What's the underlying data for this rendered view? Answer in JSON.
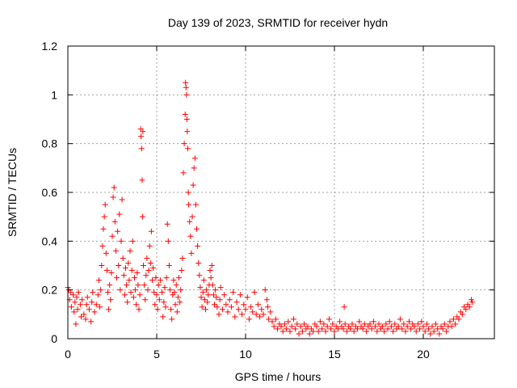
{
  "chart_data": {
    "type": "scatter",
    "title": "Day 139 of 2023, SRMTID for receiver hydn",
    "xlabel": "GPS time / hours",
    "ylabel": "SRMTID / TECUs",
    "xlim": [
      0,
      24
    ],
    "ylim": [
      0,
      1.2
    ],
    "xticks": [
      0,
      5,
      10,
      15,
      20
    ],
    "xtick_labels": [
      "0",
      "5",
      "10",
      "15",
      "20"
    ],
    "yticks": [
      0,
      0.2,
      0.4,
      0.6,
      0.8,
      1.0,
      1.2
    ],
    "ytick_labels": [
      "0",
      "0.2",
      "0.4",
      "0.6",
      "0.8",
      "1",
      "1.2"
    ],
    "grid": true,
    "marker": "+",
    "color": "#ff0000",
    "series": [
      {
        "name": "SRMTID",
        "points": [
          [
            0.0,
            0.21
          ],
          [
            0.05,
            0.2
          ],
          [
            0.1,
            0.16
          ],
          [
            0.15,
            0.19
          ],
          [
            0.2,
            0.13
          ],
          [
            0.3,
            0.18
          ],
          [
            0.35,
            0.11
          ],
          [
            0.4,
            0.15
          ],
          [
            0.45,
            0.06
          ],
          [
            0.5,
            0.17
          ],
          [
            0.55,
            0.12
          ],
          [
            0.6,
            0.19
          ],
          [
            0.7,
            0.14
          ],
          [
            0.75,
            0.09
          ],
          [
            0.8,
            0.16
          ],
          [
            0.9,
            0.1
          ],
          [
            1.0,
            0.08
          ],
          [
            1.05,
            0.14
          ],
          [
            1.1,
            0.17
          ],
          [
            1.2,
            0.12
          ],
          [
            1.3,
            0.07
          ],
          [
            1.35,
            0.15
          ],
          [
            1.4,
            0.19
          ],
          [
            1.5,
            0.11
          ],
          [
            1.6,
            0.14
          ],
          [
            1.7,
            0.18
          ],
          [
            1.75,
            0.24
          ],
          [
            1.8,
            0.13
          ],
          [
            1.85,
            0.2
          ],
          [
            1.9,
            0.3
          ],
          [
            1.95,
            0.38
          ],
          [
            2.0,
            0.45
          ],
          [
            2.05,
            0.5
          ],
          [
            2.1,
            0.55
          ],
          [
            2.15,
            0.35
          ],
          [
            2.2,
            0.28
          ],
          [
            2.25,
            0.19
          ],
          [
            2.3,
            0.12
          ],
          [
            2.35,
            0.22
          ],
          [
            2.4,
            0.16
          ],
          [
            2.45,
            0.27
          ],
          [
            2.5,
            0.42
          ],
          [
            2.55,
            0.58
          ],
          [
            2.6,
            0.62
          ],
          [
            2.65,
            0.48
          ],
          [
            2.7,
            0.36
          ],
          [
            2.75,
            0.25
          ],
          [
            2.8,
            0.44
          ],
          [
            2.85,
            0.3
          ],
          [
            2.9,
            0.51
          ],
          [
            2.95,
            0.2
          ],
          [
            3.0,
            0.4
          ],
          [
            3.05,
            0.57
          ],
          [
            3.1,
            0.33
          ],
          [
            3.15,
            0.26
          ],
          [
            3.2,
            0.18
          ],
          [
            3.25,
            0.29
          ],
          [
            3.3,
            0.22
          ],
          [
            3.35,
            0.15
          ],
          [
            3.4,
            0.31
          ],
          [
            3.45,
            0.24
          ],
          [
            3.5,
            0.36
          ],
          [
            3.55,
            0.19
          ],
          [
            3.6,
            0.28
          ],
          [
            3.65,
            0.4
          ],
          [
            3.7,
            0.17
          ],
          [
            3.75,
            0.25
          ],
          [
            3.8,
            0.2
          ],
          [
            3.85,
            0.14
          ],
          [
            3.9,
            0.27
          ],
          [
            3.95,
            0.22
          ],
          [
            4.0,
            0.12
          ],
          [
            4.05,
            0.18
          ],
          [
            4.1,
            0.86
          ],
          [
            4.12,
            0.83
          ],
          [
            4.15,
            0.78
          ],
          [
            4.18,
            0.65
          ],
          [
            4.2,
            0.5
          ],
          [
            4.22,
            0.85
          ],
          [
            4.25,
            0.3
          ],
          [
            4.3,
            0.22
          ],
          [
            4.35,
            0.16
          ],
          [
            4.4,
            0.26
          ],
          [
            4.45,
            0.33
          ],
          [
            4.5,
            0.2
          ],
          [
            4.55,
            0.28
          ],
          [
            4.6,
            0.38
          ],
          [
            4.65,
            0.31
          ],
          [
            4.7,
            0.44
          ],
          [
            4.75,
            0.24
          ],
          [
            4.8,
            0.29
          ],
          [
            4.85,
            0.19
          ],
          [
            4.9,
            0.14
          ],
          [
            4.95,
            0.25
          ],
          [
            5.0,
            0.18
          ],
          [
            5.05,
            0.12
          ],
          [
            5.1,
            0.22
          ],
          [
            5.15,
            0.16
          ],
          [
            5.2,
            0.24
          ],
          [
            5.3,
            0.19
          ],
          [
            5.35,
            0.09
          ],
          [
            5.4,
            0.15
          ],
          [
            5.45,
            0.21
          ],
          [
            5.5,
            0.13
          ],
          [
            5.55,
            0.25
          ],
          [
            5.6,
            0.47
          ],
          [
            5.65,
            0.4
          ],
          [
            5.7,
            0.3
          ],
          [
            5.75,
            0.2
          ],
          [
            5.8,
            0.12
          ],
          [
            5.85,
            0.08
          ],
          [
            5.9,
            0.18
          ],
          [
            5.95,
            0.24
          ],
          [
            6.0,
            0.19
          ],
          [
            6.05,
            0.14
          ],
          [
            6.1,
            0.22
          ],
          [
            6.15,
            0.11
          ],
          [
            6.2,
            0.17
          ],
          [
            6.25,
            0.25
          ],
          [
            6.3,
            0.15
          ],
          [
            6.35,
            0.2
          ],
          [
            6.4,
            0.28
          ],
          [
            6.45,
            0.33
          ],
          [
            6.5,
            0.68
          ],
          [
            6.55,
            0.8
          ],
          [
            6.6,
            0.92
          ],
          [
            6.62,
            1.05
          ],
          [
            6.65,
            1.03
          ],
          [
            6.68,
            1.0
          ],
          [
            6.7,
            0.9
          ],
          [
            6.72,
            0.85
          ],
          [
            6.75,
            0.78
          ],
          [
            6.78,
            0.6
          ],
          [
            6.8,
            0.55
          ],
          [
            6.85,
            0.48
          ],
          [
            6.9,
            0.42
          ],
          [
            6.95,
            0.35
          ],
          [
            7.0,
            0.5
          ],
          [
            7.05,
            0.63
          ],
          [
            7.1,
            0.7
          ],
          [
            7.15,
            0.74
          ],
          [
            7.2,
            0.55
          ],
          [
            7.25,
            0.45
          ],
          [
            7.3,
            0.38
          ],
          [
            7.35,
            0.31
          ],
          [
            7.4,
            0.26
          ],
          [
            7.45,
            0.21
          ],
          [
            7.5,
            0.17
          ],
          [
            7.55,
            0.13
          ],
          [
            7.6,
            0.19
          ],
          [
            7.65,
            0.24
          ],
          [
            7.7,
            0.16
          ],
          [
            7.75,
            0.12
          ],
          [
            7.8,
            0.2
          ],
          [
            7.85,
            0.15
          ],
          [
            7.9,
            0.18
          ],
          [
            7.95,
            0.22
          ],
          [
            8.0,
            0.28
          ],
          [
            8.05,
            0.25
          ],
          [
            8.1,
            0.3
          ],
          [
            8.15,
            0.22
          ],
          [
            8.2,
            0.18
          ],
          [
            8.25,
            0.14
          ],
          [
            8.3,
            0.2
          ],
          [
            8.35,
            0.17
          ],
          [
            8.4,
            0.13
          ],
          [
            8.5,
            0.1
          ],
          [
            8.55,
            0.16
          ],
          [
            8.6,
            0.21
          ],
          [
            8.7,
            0.12
          ],
          [
            8.8,
            0.18
          ],
          [
            8.9,
            0.14
          ],
          [
            9.0,
            0.11
          ],
          [
            9.1,
            0.16
          ],
          [
            9.2,
            0.13
          ],
          [
            9.3,
            0.19
          ],
          [
            9.4,
            0.09
          ],
          [
            9.5,
            0.15
          ],
          [
            9.6,
            0.12
          ],
          [
            9.7,
            0.18
          ],
          [
            9.8,
            0.1
          ],
          [
            9.9,
            0.14
          ],
          [
            10.0,
            0.12
          ],
          [
            10.1,
            0.17
          ],
          [
            10.2,
            0.08
          ],
          [
            10.3,
            0.13
          ],
          [
            10.4,
            0.11
          ],
          [
            10.5,
            0.19
          ],
          [
            10.6,
            0.1
          ],
          [
            10.7,
            0.14
          ],
          [
            10.8,
            0.09
          ],
          [
            10.9,
            0.12
          ],
          [
            11.0,
            0.1
          ],
          [
            11.1,
            0.2
          ],
          [
            11.2,
            0.16
          ],
          [
            11.25,
            0.13
          ],
          [
            11.3,
            0.08
          ],
          [
            11.4,
            0.11
          ],
          [
            11.5,
            0.07
          ],
          [
            11.6,
            0.05
          ],
          [
            11.7,
            0.08
          ],
          [
            11.8,
            0.04
          ],
          [
            11.9,
            0.06
          ],
          [
            12.0,
            0.05
          ],
          [
            12.1,
            0.03
          ],
          [
            12.2,
            0.06
          ],
          [
            12.3,
            0.04
          ],
          [
            12.4,
            0.07
          ],
          [
            12.5,
            0.03
          ],
          [
            12.6,
            0.05
          ],
          [
            12.7,
            0.08
          ],
          [
            12.8,
            0.04
          ],
          [
            12.9,
            0.06
          ],
          [
            13.0,
            0.02
          ],
          [
            13.1,
            0.05
          ],
          [
            13.2,
            0.03
          ],
          [
            13.3,
            0.06
          ],
          [
            13.4,
            0.04
          ],
          [
            13.5,
            0.05
          ],
          [
            13.6,
            0.02
          ],
          [
            13.7,
            0.04
          ],
          [
            13.8,
            0.03
          ],
          [
            13.9,
            0.06
          ],
          [
            14.0,
            0.05
          ],
          [
            14.1,
            0.03
          ],
          [
            14.2,
            0.07
          ],
          [
            14.3,
            0.04
          ],
          [
            14.4,
            0.06
          ],
          [
            14.5,
            0.03
          ],
          [
            14.6,
            0.05
          ],
          [
            14.7,
            0.08
          ],
          [
            14.8,
            0.04
          ],
          [
            14.9,
            0.06
          ],
          [
            15.0,
            0.03
          ],
          [
            15.1,
            0.05
          ],
          [
            15.2,
            0.04
          ],
          [
            15.3,
            0.07
          ],
          [
            15.4,
            0.05
          ],
          [
            15.5,
            0.04
          ],
          [
            15.55,
            0.13
          ],
          [
            15.6,
            0.06
          ],
          [
            15.7,
            0.03
          ],
          [
            15.8,
            0.05
          ],
          [
            15.9,
            0.04
          ],
          [
            16.0,
            0.06
          ],
          [
            16.1,
            0.03
          ],
          [
            16.2,
            0.05
          ],
          [
            16.3,
            0.04
          ],
          [
            16.4,
            0.07
          ],
          [
            16.5,
            0.05
          ],
          [
            16.6,
            0.04
          ],
          [
            16.7,
            0.06
          ],
          [
            16.8,
            0.03
          ],
          [
            16.9,
            0.05
          ],
          [
            17.0,
            0.06
          ],
          [
            17.1,
            0.04
          ],
          [
            17.2,
            0.07
          ],
          [
            17.3,
            0.05
          ],
          [
            17.4,
            0.03
          ],
          [
            17.5,
            0.06
          ],
          [
            17.6,
            0.04
          ],
          [
            17.7,
            0.05
          ],
          [
            17.8,
            0.03
          ],
          [
            17.9,
            0.06
          ],
          [
            18.0,
            0.04
          ],
          [
            18.1,
            0.07
          ],
          [
            18.2,
            0.05
          ],
          [
            18.3,
            0.03
          ],
          [
            18.4,
            0.06
          ],
          [
            18.5,
            0.04
          ],
          [
            18.6,
            0.05
          ],
          [
            18.7,
            0.08
          ],
          [
            18.8,
            0.04
          ],
          [
            18.9,
            0.06
          ],
          [
            19.0,
            0.03
          ],
          [
            19.1,
            0.05
          ],
          [
            19.2,
            0.07
          ],
          [
            19.3,
            0.04
          ],
          [
            19.4,
            0.06
          ],
          [
            19.5,
            0.05
          ],
          [
            19.6,
            0.03
          ],
          [
            19.7,
            0.06
          ],
          [
            19.8,
            0.04
          ],
          [
            19.9,
            0.07
          ],
          [
            20.0,
            0.05
          ],
          [
            20.1,
            0.03
          ],
          [
            20.2,
            0.06
          ],
          [
            20.3,
            0.04
          ],
          [
            20.4,
            0.02
          ],
          [
            20.5,
            0.05
          ],
          [
            20.6,
            0.03
          ],
          [
            20.7,
            0.06
          ],
          [
            20.8,
            0.04
          ],
          [
            20.9,
            0.02
          ],
          [
            21.0,
            0.05
          ],
          [
            21.1,
            0.04
          ],
          [
            21.2,
            0.06
          ],
          [
            21.3,
            0.03
          ],
          [
            21.4,
            0.05
          ],
          [
            21.5,
            0.07
          ],
          [
            21.6,
            0.05
          ],
          [
            21.7,
            0.08
          ],
          [
            21.8,
            0.06
          ],
          [
            21.9,
            0.09
          ],
          [
            22.0,
            0.08
          ],
          [
            22.1,
            0.11
          ],
          [
            22.2,
            0.1
          ],
          [
            22.3,
            0.13
          ],
          [
            22.4,
            0.12
          ],
          [
            22.5,
            0.14
          ],
          [
            22.6,
            0.13
          ],
          [
            22.7,
            0.16
          ],
          [
            22.75,
            0.15
          ]
        ]
      }
    ]
  }
}
